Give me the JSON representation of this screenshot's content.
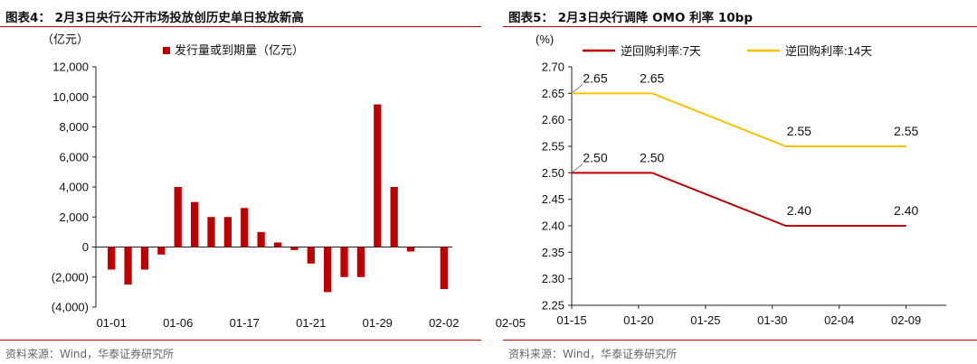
{
  "figures": {
    "left": {
      "title": "图表4： 2月3日央行公开市场投放创历史单日投放新高",
      "unit": "（亿元）",
      "source": "资料来源：Wind，华泰证券研究所"
    },
    "right": {
      "title": "图表5： 2月3日央行调降 OMO 利率 10bp",
      "unit": "(%)",
      "source": "资料来源：Wind，华泰证券研究所"
    }
  },
  "colors": {
    "accent_red": "#c00000",
    "bar_red": "#c00000",
    "line_red": "#c00000",
    "line_yellow": "#ffc000"
  },
  "chart_data": [
    {
      "type": "bar",
      "title": "",
      "ylabel": "（亿元）",
      "ylim": [
        -4000,
        12000
      ],
      "yticks": [
        -4000,
        -2000,
        0,
        2000,
        4000,
        6000,
        8000,
        10000,
        12000
      ],
      "ytick_labels": [
        "(4,000)",
        "(2,000)",
        "0",
        "2,000",
        "4,000",
        "6,000",
        "8,000",
        "10,000",
        "12,000"
      ],
      "xtick_labels": [
        "01-01",
        "01-06",
        "01-17",
        "01-21",
        "01-29",
        "02-02",
        "02-05"
      ],
      "xtick_indices": [
        0,
        4,
        8,
        12,
        16,
        20,
        24
      ],
      "legend": "top",
      "series": [
        {
          "name": "发行量或到期量（亿元）",
          "values": [
            -1500,
            -2500,
            -1500,
            -500,
            4000,
            3000,
            2000,
            2000,
            2600,
            1000,
            300,
            -200,
            -1100,
            -3000,
            -2000,
            -2000,
            9500,
            4000,
            -300,
            -2800
          ]
        }
      ],
      "bar_slots": [
        0,
        1,
        2,
        3,
        4,
        5,
        6,
        7,
        8,
        9,
        10,
        11,
        12,
        13,
        14,
        15,
        16,
        17,
        18,
        20
      ]
    },
    {
      "type": "line",
      "title": "",
      "ylabel": "(%)",
      "ylim": [
        2.25,
        2.7
      ],
      "yticks": [
        2.25,
        2.3,
        2.35,
        2.4,
        2.45,
        2.5,
        2.55,
        2.6,
        2.65,
        2.7
      ],
      "ytick_labels": [
        "2.25",
        "2.30",
        "2.35",
        "2.40",
        "2.45",
        "2.50",
        "2.55",
        "2.60",
        "2.65",
        "2.70"
      ],
      "x": [
        "01-15",
        "01-20",
        "01-25",
        "01-30",
        "02-04",
        "02-09"
      ],
      "xrange_days": [
        0,
        28
      ],
      "legend": "top",
      "series": [
        {
          "name": "逆回购利率:7天",
          "color": "#c00000",
          "points": [
            [
              0,
              2.5
            ],
            [
              6,
              2.5
            ],
            [
              16,
              2.4
            ],
            [
              20,
              2.4
            ],
            [
              25,
              2.4
            ]
          ],
          "labels": [
            {
              "x": 0,
              "y": 2.5,
              "text": "2.50"
            },
            {
              "x": 6,
              "y": 2.5,
              "text": "2.50"
            },
            {
              "x": 17,
              "y": 2.4,
              "text": "2.40"
            },
            {
              "x": 25,
              "y": 2.4,
              "text": "2.40"
            }
          ]
        },
        {
          "name": "逆回购利率:14天",
          "color": "#ffc000",
          "points": [
            [
              0,
              2.65
            ],
            [
              6,
              2.65
            ],
            [
              16,
              2.55
            ],
            [
              20,
              2.55
            ],
            [
              25,
              2.55
            ]
          ],
          "labels": [
            {
              "x": 0,
              "y": 2.65,
              "text": "2.65"
            },
            {
              "x": 6,
              "y": 2.65,
              "text": "2.65"
            },
            {
              "x": 17,
              "y": 2.55,
              "text": "2.55"
            },
            {
              "x": 25,
              "y": 2.55,
              "text": "2.55"
            }
          ]
        }
      ]
    }
  ]
}
